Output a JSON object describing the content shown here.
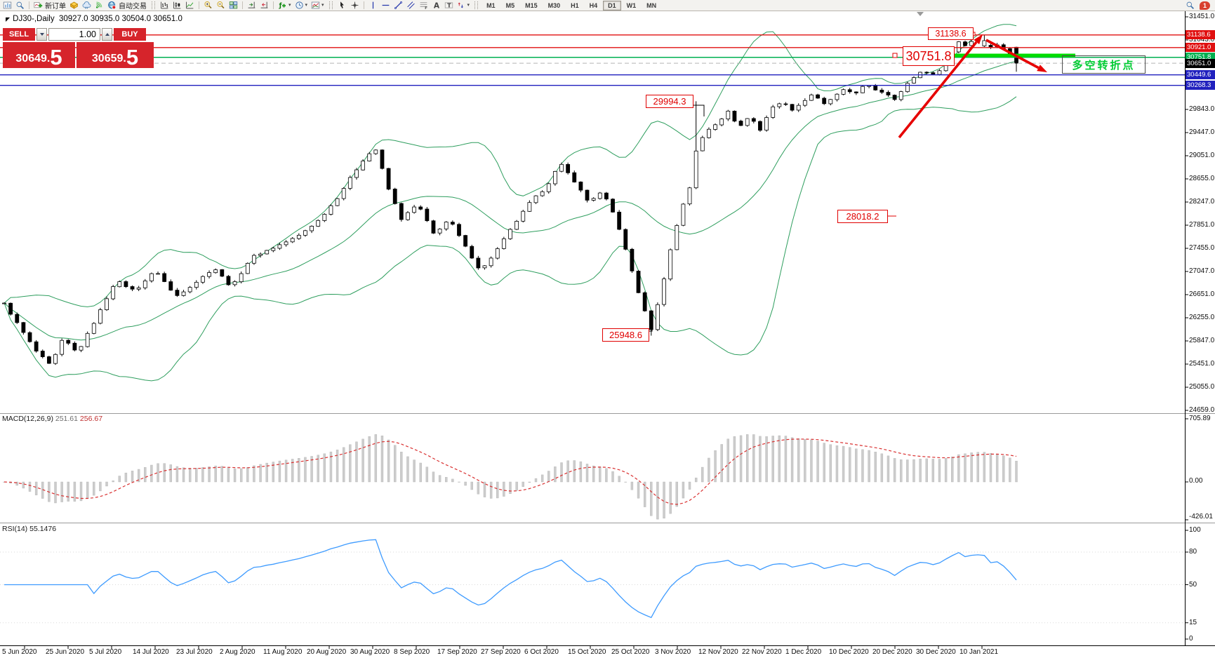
{
  "toolbar": {
    "new_order_label": "新订单",
    "autotrading_label": "自动交易",
    "timeframes": [
      "M1",
      "M5",
      "M15",
      "M30",
      "H1",
      "H4",
      "D1",
      "W1",
      "MN"
    ],
    "active_timeframe": "D1",
    "notification_badge": "1"
  },
  "chart": {
    "symbol_period": "DJ30-,Daily",
    "ohlc": "30927.0 30935.0 30504.0 30651.0"
  },
  "trade_panel": {
    "sell_label": "SELL",
    "buy_label": "BUY",
    "volume": "1.00",
    "sell_price_main": "30649",
    "sell_price_frac": "5",
    "buy_price_main": "30659",
    "buy_price_frac": "5"
  },
  "levels": [
    {
      "label": "31138.6",
      "price": 31138.6,
      "color": "#e01010",
      "style": "solid",
      "tag_bg": "#e01010"
    },
    {
      "label": "30921.0",
      "price": 30921.0,
      "color": "#e01010",
      "style": "solid",
      "tag_bg": "#e01010"
    },
    {
      "label": "30751.8",
      "price": 30751.8,
      "color": "#00b050",
      "style": "solid",
      "tag_bg": "#00b050"
    },
    {
      "label": "30651.0",
      "price": 30651.0,
      "color": "#b4b4b4",
      "style": "dashed",
      "tag_bg": "#000000"
    },
    {
      "label": "30449.6",
      "price": 30449.6,
      "color": "#2121be",
      "style": "solid",
      "tag_bg": "#2121be"
    },
    {
      "label": "30268.3",
      "price": 30268.3,
      "color": "#2121be",
      "style": "solid",
      "tag_bg": "#2121be"
    }
  ],
  "annotations": [
    {
      "id": "high-label",
      "text": "31138.6"
    },
    {
      "id": "pivot-label",
      "text": "30751.8"
    },
    {
      "id": "swing-label-1",
      "text": "29994.3"
    },
    {
      "id": "level-label",
      "text": "28018.2"
    },
    {
      "id": "swing-label-2",
      "text": "25948.6"
    }
  ],
  "trend_note": "多空转折点",
  "y_axis_labels": [
    "31451.0",
    "31043.0",
    "30643.0",
    "30243.0",
    "29843.0",
    "29447.0",
    "29051.0",
    "28655.0",
    "28247.0",
    "27851.0",
    "27455.0",
    "27047.0",
    "26651.0",
    "26255.0",
    "25847.0",
    "25451.0",
    "25055.0",
    "24659.0"
  ],
  "x_axis_dates": [
    "5 Jun 2020",
    "25 Jun 2020",
    "5 Jul 2020",
    "14 Jul 2020",
    "23 Jul 2020",
    "2 Aug 2020",
    "11 Aug 2020",
    "20 Aug 2020",
    "30 Aug 2020",
    "8 Sep 2020",
    "17 Sep 2020",
    "27 Sep 2020",
    "6 Oct 2020",
    "15 Oct 2020",
    "25 Oct 2020",
    "3 Nov 2020",
    "12 Nov 2020",
    "22 Nov 2020",
    "1 Dec 2020",
    "10 Dec 2020",
    "20 Dec 2020",
    "30 Dec 2020",
    "10 Jan 2021"
  ],
  "macd": {
    "label": "MACD(12,26,9)",
    "value_main": "251.61",
    "value_signal": "256.67",
    "axis_max": "705.89",
    "axis_zero": "0.00",
    "axis_min": "-426.01"
  },
  "rsi": {
    "label": "RSI(14)",
    "value": "55.1476",
    "levels": [
      "100",
      "80",
      "50",
      "15",
      "0"
    ]
  },
  "chart_data": {
    "type": "candlestick",
    "symbol": "DJ30-",
    "timeframe": "Daily",
    "last_bar": {
      "open": 30927.0,
      "high": 30935.0,
      "low": 30504.0,
      "close": 30651.0
    },
    "bid": 30649.5,
    "ask": 30659.5,
    "y_range": [
      24659.0,
      31451.0
    ],
    "marked_levels": [
      31138.6,
      30921.0,
      30751.8,
      30651.0,
      30449.6,
      30268.3
    ],
    "swing_annotations": [
      31138.6,
      30751.8,
      29994.3,
      28018.2,
      25948.6
    ],
    "indicators": {
      "bollinger_bands": {
        "period": 20,
        "deviation": 2,
        "color": "#2e9e5e"
      },
      "macd": {
        "fast": 12,
        "slow": 26,
        "signal": 9,
        "value": 251.61,
        "signal_value": 256.67,
        "axis": [
          705.89,
          0.0,
          -426.01
        ]
      },
      "rsi": {
        "period": 14,
        "value": 55.1476,
        "axis": [
          100,
          80,
          50,
          15,
          0
        ]
      }
    },
    "price_path_anchors": [
      [
        6,
        26500
      ],
      [
        25,
        26150
      ],
      [
        50,
        25700
      ],
      [
        72,
        25430
      ],
      [
        90,
        25900
      ],
      [
        110,
        25650
      ],
      [
        135,
        26200
      ],
      [
        165,
        26900
      ],
      [
        192,
        26720
      ],
      [
        222,
        27080
      ],
      [
        250,
        26620
      ],
      [
        278,
        26860
      ],
      [
        305,
        27120
      ],
      [
        330,
        26780
      ],
      [
        358,
        27300
      ],
      [
        392,
        27480
      ],
      [
        424,
        27660
      ],
      [
        455,
        27950
      ],
      [
        480,
        28320
      ],
      [
        502,
        28720
      ],
      [
        522,
        29060
      ],
      [
        536,
        29160
      ],
      [
        552,
        28520
      ],
      [
        572,
        27960
      ],
      [
        595,
        28220
      ],
      [
        618,
        27700
      ],
      [
        640,
        27960
      ],
      [
        662,
        27500
      ],
      [
        685,
        27060
      ],
      [
        708,
        27430
      ],
      [
        732,
        27860
      ],
      [
        756,
        28260
      ],
      [
        778,
        28510
      ],
      [
        798,
        28920
      ],
      [
        818,
        28620
      ],
      [
        838,
        28260
      ],
      [
        858,
        28430
      ],
      [
        878,
        27960
      ],
      [
        898,
        27160
      ],
      [
        915,
        26480
      ],
      [
        928,
        26060
      ],
      [
        940,
        26620
      ],
      [
        955,
        27420
      ],
      [
        970,
        28120
      ],
      [
        983,
        28520
      ],
      [
        993,
        29220
      ],
      [
        1008,
        29500
      ],
      [
        1023,
        29640
      ],
      [
        1038,
        29820
      ],
      [
        1053,
        29540
      ],
      [
        1068,
        29740
      ],
      [
        1083,
        29500
      ],
      [
        1098,
        29860
      ],
      [
        1113,
        29990
      ],
      [
        1128,
        29850
      ],
      [
        1143,
        29970
      ],
      [
        1158,
        30130
      ],
      [
        1173,
        29930
      ],
      [
        1188,
        30070
      ],
      [
        1203,
        30190
      ],
      [
        1218,
        30130
      ],
      [
        1233,
        30280
      ],
      [
        1248,
        30190
      ],
      [
        1263,
        30130
      ],
      [
        1276,
        30030
      ],
      [
        1288,
        30230
      ],
      [
        1300,
        30390
      ],
      [
        1315,
        30530
      ],
      [
        1330,
        30440
      ],
      [
        1343,
        30590
      ],
      [
        1355,
        30810
      ],
      [
        1366,
        31030
      ],
      [
        1376,
        30950
      ],
      [
        1388,
        31070
      ],
      [
        1398,
        31040
      ],
      [
        1408,
        30890
      ],
      [
        1418,
        30990
      ],
      [
        1428,
        30930
      ],
      [
        1438,
        30800
      ],
      [
        1448,
        30651
      ]
    ],
    "drawings": [
      {
        "type": "arrow-up",
        "color": "#e60000"
      },
      {
        "type": "arrow-down",
        "color": "#e60000"
      },
      {
        "type": "thick-segment",
        "price": 30751.8,
        "color": "#00dd00"
      },
      {
        "type": "text",
        "text": "多空转折点",
        "color": "#00cc33"
      }
    ]
  }
}
